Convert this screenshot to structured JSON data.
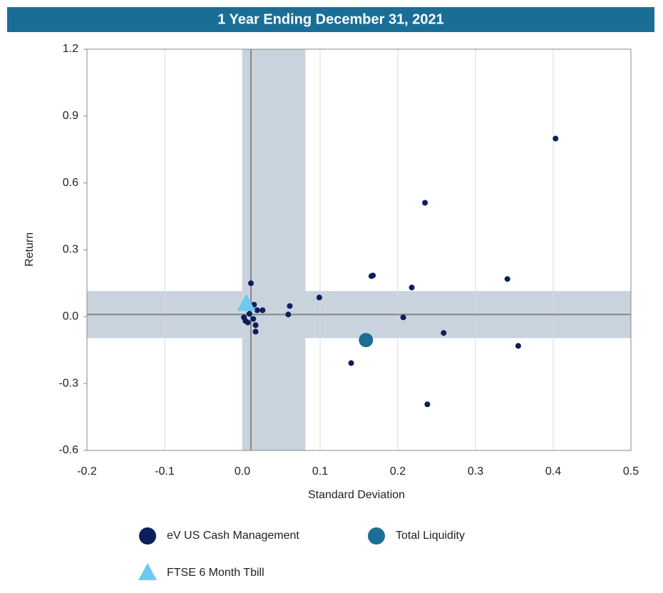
{
  "chart_data": {
    "type": "scatter",
    "title": "1 Year Ending December 31, 2021",
    "x_label": "Standard Deviation",
    "y_label": "Return",
    "xlim": [
      -0.2,
      0.5
    ],
    "ylim": [
      -0.6,
      1.2
    ],
    "xticks": [
      -0.2,
      -0.1,
      {
        "value": 0,
        "label": "0.0"
      },
      0.1,
      0.2,
      0.3,
      0.4,
      0.5
    ],
    "yticks": [
      -0.6,
      -0.3,
      {
        "value": 0,
        "label": "0.0"
      },
      0.3,
      0.6,
      0.9,
      1.2
    ],
    "grid_x": true,
    "x_band": [
      0,
      0.081
    ],
    "y_band": [
      -0.096,
      0.115
    ],
    "x_median": 0.011,
    "y_median": 0.01,
    "band_color": "#c9d3de",
    "median_color": "#888888",
    "series": [
      {
        "name": "eV US Cash Management",
        "color": "#0b1f5c",
        "marker": "circle",
        "x": [
          0.403,
          0.235,
          0.168,
          0.166,
          0.341,
          0.218,
          0.099,
          0.061,
          0.059,
          0.207,
          0.259,
          0.355,
          0.14,
          0.238,
          0.011,
          0.015,
          0.026,
          0.019,
          0.017,
          0.017,
          0.004,
          0.007,
          0.002,
          0.014,
          0.009
        ],
        "y": [
          0.799,
          0.511,
          0.185,
          0.182,
          0.169,
          0.131,
          0.086,
          0.048,
          0.01,
          -0.003,
          -0.073,
          -0.131,
          -0.208,
          -0.393,
          0.15,
          0.054,
          0.029,
          0.029,
          -0.038,
          -0.067,
          -0.019,
          -0.026,
          -0.003,
          -0.01,
          0.013
        ]
      },
      {
        "name": "Total Liquidity",
        "color": "#1c6e97",
        "marker": "big-circle",
        "x": [
          0.159
        ],
        "y": [
          -0.105
        ]
      },
      {
        "name": "FTSE 6 Month Tbill",
        "color": "#6ccaf0",
        "marker": "triangle",
        "x": [
          0.005
        ],
        "y": [
          0.058
        ]
      }
    ]
  }
}
